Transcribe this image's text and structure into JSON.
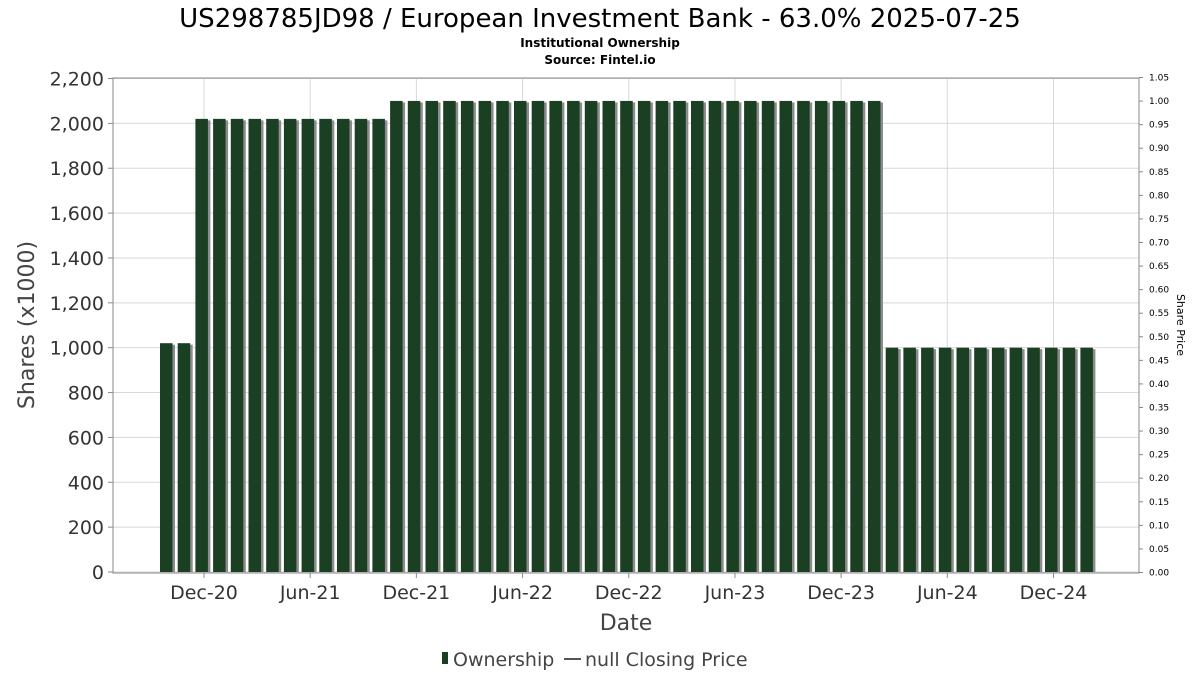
{
  "chart_data": {
    "type": "bar",
    "title": "US298785JD98 / European Investment Bank - 63.0% 2025-07-25",
    "subtitle_lines": [
      "Institutional Ownership",
      "Source: Fintel.io"
    ],
    "xlabel": "Date",
    "ylabel": "Shares (x1000)",
    "ylabel_right": "Share Price",
    "ylim": [
      0,
      2200
    ],
    "ylim_right": [
      0,
      1.05
    ],
    "yticks": [
      "0",
      "200",
      "400",
      "600",
      "800",
      "1,000",
      "1,200",
      "1,400",
      "1,600",
      "1,800",
      "2,000",
      "2,200"
    ],
    "yticks_right": [
      "0.00",
      "0.05",
      "0.10",
      "0.15",
      "0.20",
      "0.25",
      "0.30",
      "0.35",
      "0.40",
      "0.45",
      "0.50",
      "0.55",
      "0.60",
      "0.65",
      "0.70",
      "0.75",
      "0.80",
      "0.85",
      "0.90",
      "0.95",
      "1.00",
      "1.05"
    ],
    "xticks": [
      "Dec-20",
      "Jun-21",
      "Dec-21",
      "Jun-22",
      "Dec-22",
      "Jun-23",
      "Dec-23",
      "Jun-24",
      "Dec-24"
    ],
    "grid": true,
    "legend_position": "bottom",
    "series": [
      {
        "name": "Ownership",
        "color": "#1a3f23",
        "values": [
          1020,
          1020,
          2020,
          2020,
          2020,
          2020,
          2020,
          2020,
          2020,
          2020,
          2020,
          2020,
          2020,
          2100,
          2100,
          2100,
          2100,
          2100,
          2100,
          2100,
          2100,
          2100,
          2100,
          2100,
          2100,
          2100,
          2100,
          2100,
          2100,
          2100,
          2100,
          2100,
          2100,
          2100,
          2100,
          2100,
          2100,
          2100,
          2100,
          2100,
          2100,
          1000,
          1000,
          1000,
          1000,
          1000,
          1000,
          1000,
          1000,
          1000,
          1000,
          1000,
          1000
        ]
      }
    ],
    "legend": [
      {
        "label": "Ownership",
        "marker": "bar",
        "color": "#1a3f23"
      },
      {
        "label": "null Closing Price",
        "marker": "line",
        "color": "#555555"
      }
    ]
  }
}
